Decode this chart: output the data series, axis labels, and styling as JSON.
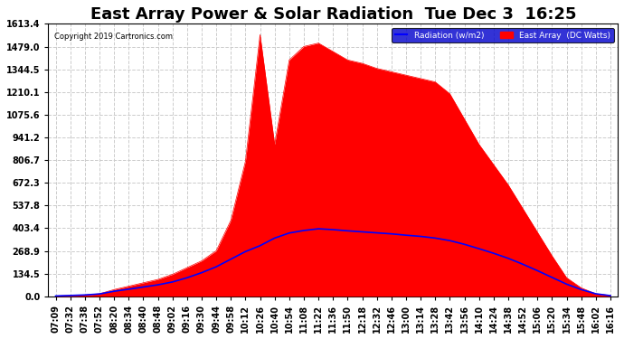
{
  "title": "East Array Power & Solar Radiation  Tue Dec 3  16:25",
  "copyright_text": "Copyright 2019 Cartronics.com",
  "legend_label_radiation": "Radiation (w/m2)",
  "legend_label_east": "East Array  (DC Watts)",
  "ymin": 0.0,
  "ymax": 1613.4,
  "yticks": [
    0.0,
    134.5,
    268.9,
    403.4,
    537.8,
    672.3,
    806.7,
    941.2,
    1075.6,
    1210.1,
    1344.5,
    1479.0,
    1613.4
  ],
  "background_color": "#ffffff",
  "plot_bg_color": "#ffffff",
  "grid_color": "#cccccc",
  "red_color": "#ff0000",
  "blue_color": "#0000ff",
  "title_fontsize": 13,
  "tick_fontsize": 7,
  "xtick_labels": [
    "07:09",
    "07:32",
    "07:38",
    "07:52",
    "08:20",
    "08:34",
    "08:40",
    "08:48",
    "09:02",
    "09:16",
    "09:30",
    "09:44",
    "09:58",
    "10:12",
    "10:26",
    "10:40",
    "10:54",
    "11:08",
    "11:22",
    "11:36",
    "11:50",
    "12:18",
    "12:32",
    "12:46",
    "13:00",
    "13:14",
    "13:28",
    "13:42",
    "13:56",
    "14:10",
    "14:24",
    "14:38",
    "14:52",
    "15:06",
    "15:20",
    "15:34",
    "15:48",
    "16:02",
    "16:16"
  ],
  "east_array_raw": [
    2,
    5,
    8,
    15,
    40,
    60,
    80,
    100,
    130,
    170,
    210,
    270,
    450,
    800,
    1550,
    900,
    1400,
    1480,
    1500,
    1450,
    1400,
    1380,
    1350,
    1330,
    1310,
    1290,
    1270,
    1200,
    1050,
    900,
    780,
    660,
    520,
    380,
    240,
    110,
    50,
    15,
    5
  ],
  "radiation_raw": [
    2,
    5,
    8,
    14,
    30,
    42,
    55,
    68,
    85,
    110,
    140,
    175,
    220,
    265,
    300,
    345,
    375,
    390,
    400,
    395,
    388,
    382,
    376,
    370,
    362,
    355,
    345,
    330,
    308,
    282,
    255,
    225,
    190,
    152,
    112,
    72,
    40,
    15,
    4
  ]
}
